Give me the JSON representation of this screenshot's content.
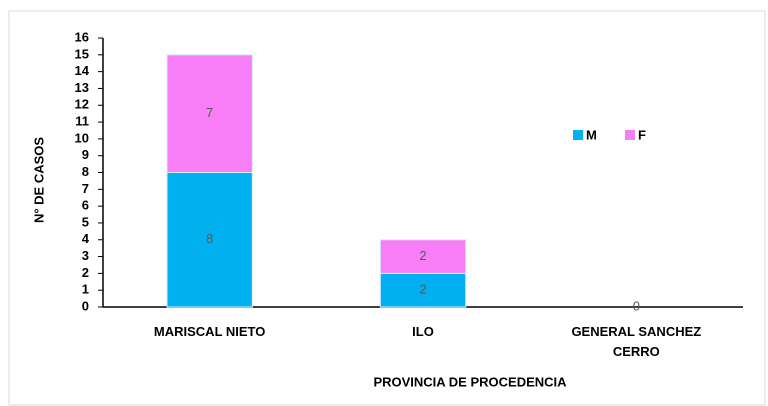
{
  "chart_data": {
    "type": "stacked_bar",
    "x_label": "PROVINCIA DE PROCEDENCIA",
    "y_label": "N° DE CASOS",
    "categories": [
      "MARISCAL NIETO",
      "ILO",
      "GENERAL SANCHEZ CERRO"
    ],
    "series": [
      {
        "name": "M",
        "color": "#00b0f0",
        "values": [
          8,
          2,
          0
        ],
        "value_labels": [
          "8",
          "2",
          "0"
        ]
      },
      {
        "name": "F",
        "color": "#f77ef7",
        "values": [
          7,
          2,
          0
        ],
        "value_labels": [
          "7",
          "2",
          null
        ]
      }
    ],
    "ylim": [
      0,
      16
    ],
    "yticks": [
      0,
      1,
      2,
      3,
      4,
      5,
      6,
      7,
      8,
      9,
      10,
      11,
      12,
      13,
      14,
      15,
      16
    ],
    "grid": false,
    "legend": "right"
  }
}
